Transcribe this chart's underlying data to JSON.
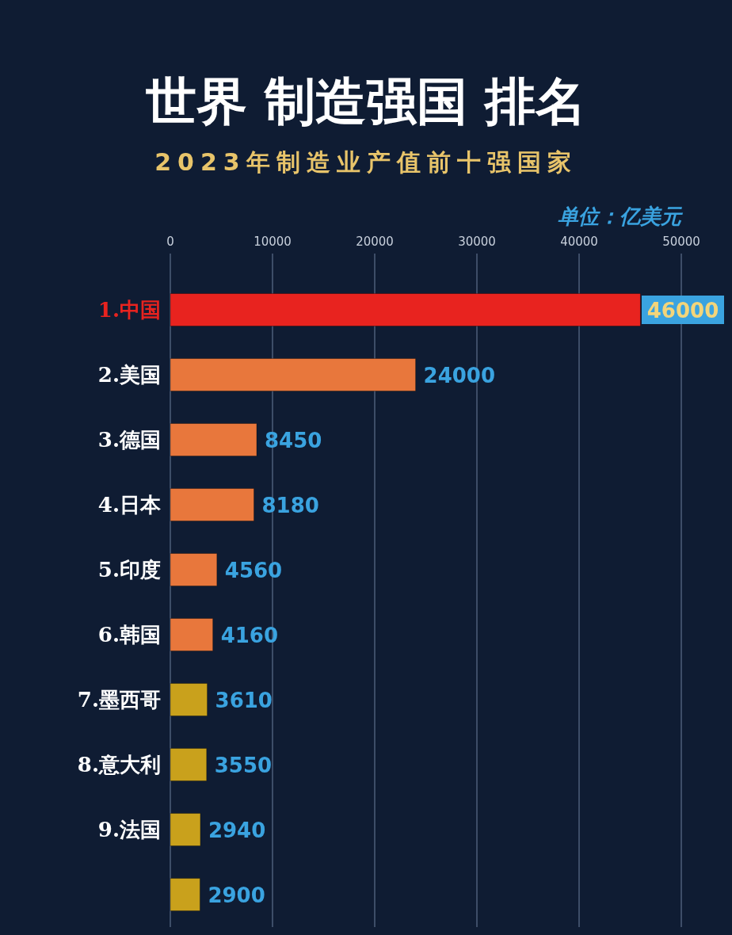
{
  "chart_data": {
    "type": "bar",
    "orientation": "horizontal",
    "title": "世界 制造强国 排名",
    "subtitle": "2023年制造业产值前十强国家",
    "annotations": [
      "单位：亿美元"
    ],
    "categories": [
      "1.中国",
      "2.美国",
      "3.德国",
      "4.日本",
      "5.印度",
      "6.韩国",
      "7.墨西哥",
      "8.意大利",
      "9.法国",
      null
    ],
    "values": [
      46000,
      24000,
      8450,
      8180,
      4560,
      4160,
      3610,
      3550,
      2940,
      2900
    ],
    "colors": [
      "#e8231f",
      "#e8773c",
      "#e8773c",
      "#e8773c",
      "#e8773c",
      "#e8773c",
      "#c9a11c",
      "#c9a11c",
      "#c9a11c",
      "#c9a11c"
    ],
    "xlim": [
      0,
      50000
    ],
    "xticks": [
      0,
      10000,
      20000,
      30000,
      40000,
      50000
    ],
    "grid": "x",
    "data_labels": true
  }
}
